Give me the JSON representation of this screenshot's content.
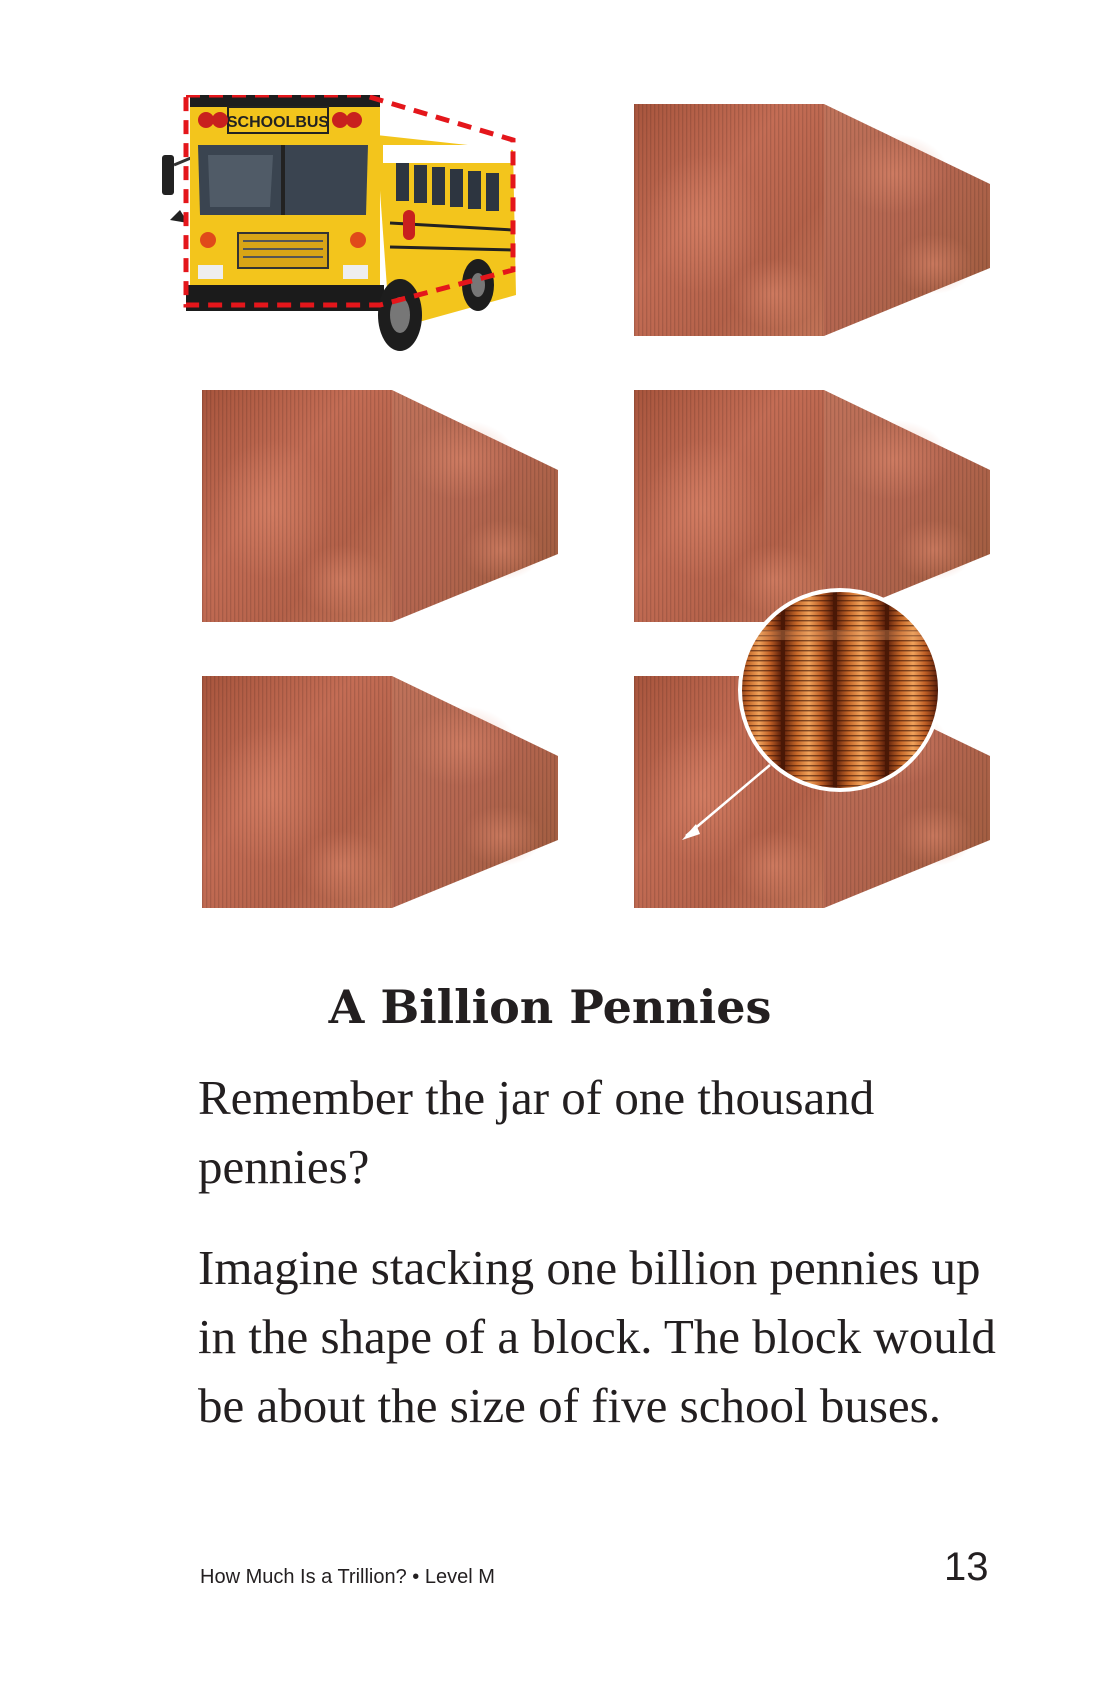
{
  "illustration": {
    "bus_sign": "SCHOOLBUS",
    "bus_color": "#f6c21b",
    "outline_color": "#e4161b",
    "penny_color": "#b65f45"
  },
  "section": {
    "title": "A Billion Pennies"
  },
  "paragraphs": [
    "Remember the jar of one thousand pennies?",
    "Imagine stacking one billion pennies up in the shape of a block. The block would be about the size of five school buses."
  ],
  "footer": {
    "book_title": "How Much Is a Trillion? • Level M",
    "page_number": "13"
  }
}
